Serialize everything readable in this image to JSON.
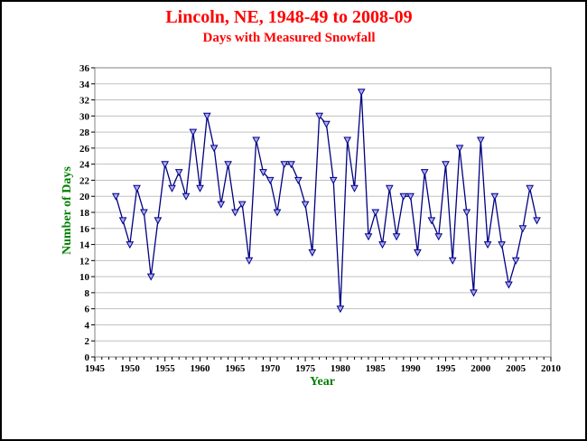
{
  "chart_data": {
    "type": "line",
    "title": "Lincoln, NE, 1948-49 to 2008-09",
    "subtitle": "Days with Measured Snowfall",
    "xlabel": "Year",
    "ylabel": "Number of Days",
    "xlim": [
      1945,
      2010
    ],
    "ylim": [
      0,
      36
    ],
    "x_ticks": [
      1945,
      1950,
      1955,
      1960,
      1965,
      1970,
      1975,
      1980,
      1985,
      1990,
      1995,
      2000,
      2005,
      2010
    ],
    "y_ticks": [
      0,
      2,
      4,
      6,
      8,
      10,
      12,
      14,
      16,
      18,
      20,
      22,
      24,
      26,
      28,
      30,
      32,
      34,
      36
    ],
    "grid": "horizontal",
    "x": [
      1948,
      1949,
      1950,
      1951,
      1952,
      1953,
      1954,
      1955,
      1956,
      1957,
      1958,
      1959,
      1960,
      1961,
      1962,
      1963,
      1964,
      1965,
      1966,
      1967,
      1968,
      1969,
      1970,
      1971,
      1972,
      1973,
      1974,
      1975,
      1976,
      1977,
      1978,
      1979,
      1980,
      1981,
      1982,
      1983,
      1984,
      1985,
      1986,
      1987,
      1988,
      1989,
      1990,
      1991,
      1992,
      1993,
      1994,
      1995,
      1996,
      1997,
      1998,
      1999,
      2000,
      2001,
      2002,
      2003,
      2004,
      2005,
      2006,
      2007,
      2008
    ],
    "values": [
      20,
      17,
      14,
      21,
      18,
      10,
      17,
      24,
      21,
      23,
      20,
      28,
      21,
      30,
      26,
      19,
      24,
      18,
      19,
      12,
      27,
      23,
      22,
      18,
      24,
      24,
      22,
      19,
      13,
      30,
      29,
      22,
      6,
      27,
      21,
      33,
      15,
      18,
      14,
      21,
      15,
      20,
      20,
      13,
      23,
      17,
      15,
      24,
      12,
      26,
      18,
      8,
      27,
      14,
      20,
      14,
      9,
      12,
      16,
      21,
      17
    ],
    "colors": {
      "title": "#ff0000",
      "axis_title": "#008000",
      "line": "#000080",
      "marker_fill": "#aaaaff",
      "marker_stroke": "#000080",
      "grid": "#c0c0c0",
      "plot_border": "#808080"
    }
  }
}
